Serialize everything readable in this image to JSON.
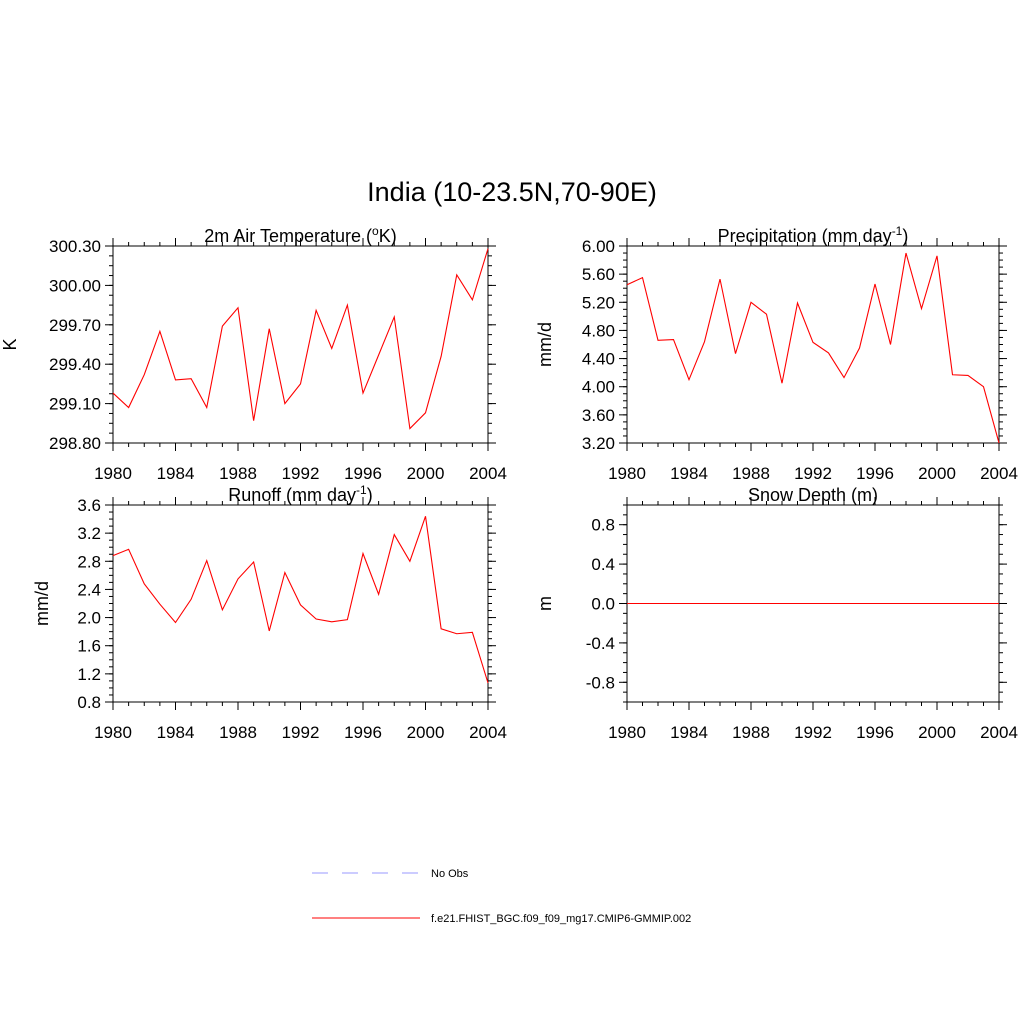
{
  "figure": {
    "title": "India (10-23.5N,70-90E)",
    "legend": [
      {
        "label": "No Obs",
        "color": "#9999ff",
        "style": "dashed"
      },
      {
        "label": "f.e21.FHIST_BGC.f09_f09_mg17.CMIP6-GMMIP.002",
        "color": "#ff0000",
        "style": "solid"
      }
    ]
  },
  "chart_data": [
    {
      "type": "line",
      "title_main": "2m Air Temperature (",
      "title_sup": "o",
      "title_end": "K)",
      "ylabel": "K",
      "xlim": [
        1980,
        2004
      ],
      "ylim": [
        298.8,
        300.3
      ],
      "yticks": [
        298.8,
        299.1,
        299.4,
        299.7,
        300.0,
        300.3
      ],
      "yticklabels": [
        "298.80",
        "299.10",
        "299.40",
        "299.70",
        "300.00",
        "300.30"
      ],
      "yminor": 0.075,
      "xticks": [
        1980,
        1984,
        1988,
        1992,
        1996,
        2000,
        2004
      ],
      "xticklabels": [
        "1980",
        "1984",
        "1988",
        "1992",
        "1996",
        "2000",
        "2004"
      ],
      "color": "#ff0000",
      "x": [
        1980,
        1981,
        1982,
        1983,
        1984,
        1985,
        1986,
        1987,
        1988,
        1989,
        1990,
        1991,
        1992,
        1993,
        1994,
        1995,
        1996,
        1997,
        1998,
        1999,
        2000,
        2001,
        2002,
        2003,
        2004
      ],
      "values": [
        299.18,
        299.07,
        299.32,
        299.65,
        299.28,
        299.29,
        299.07,
        299.69,
        299.83,
        298.97,
        299.67,
        299.1,
        299.25,
        299.81,
        299.52,
        299.85,
        299.18,
        299.47,
        299.76,
        298.91,
        299.03,
        299.46,
        300.08,
        299.89,
        300.28
      ]
    },
    {
      "type": "line",
      "title_main": "Precipitation (mm day",
      "title_sup": "-1",
      "title_end": ")",
      "ylabel": "mm/d",
      "xlim": [
        1980,
        2004
      ],
      "ylim": [
        3.2,
        6.0
      ],
      "yticks": [
        3.2,
        3.6,
        4.0,
        4.4,
        4.8,
        5.2,
        5.6,
        6.0
      ],
      "yticklabels": [
        "3.20",
        "3.60",
        "4.00",
        "4.40",
        "4.80",
        "5.20",
        "5.60",
        "6.00"
      ],
      "yminor": 0.1,
      "xticks": [
        1980,
        1984,
        1988,
        1992,
        1996,
        2000,
        2004
      ],
      "xticklabels": [
        "1980",
        "1984",
        "1988",
        "1992",
        "1996",
        "2000",
        "2004"
      ],
      "color": "#ff0000",
      "x": [
        1980,
        1981,
        1982,
        1983,
        1984,
        1985,
        1986,
        1987,
        1988,
        1989,
        1990,
        1991,
        1992,
        1993,
        1994,
        1995,
        1996,
        1997,
        1998,
        1999,
        2000,
        2001,
        2002,
        2003,
        2004
      ],
      "values": [
        5.45,
        5.55,
        4.66,
        4.67,
        4.1,
        4.64,
        5.53,
        4.47,
        5.2,
        5.03,
        4.05,
        5.19,
        4.63,
        4.48,
        4.13,
        4.55,
        5.46,
        4.6,
        5.9,
        5.11,
        5.86,
        4.17,
        4.16,
        4.0,
        3.2
      ]
    },
    {
      "type": "line",
      "title_main": "Runoff (mm day",
      "title_sup": "-1",
      "title_end": ")",
      "ylabel": "mm/d",
      "xlim": [
        1980,
        2004
      ],
      "ylim": [
        0.8,
        3.6
      ],
      "yticks": [
        0.8,
        1.2,
        1.6,
        2.0,
        2.4,
        2.8,
        3.2,
        3.6
      ],
      "yticklabels": [
        "0.8",
        "1.2",
        "1.6",
        "2.0",
        "2.4",
        "2.8",
        "3.2",
        "3.6"
      ],
      "yminor": 0.1,
      "xticks": [
        1980,
        1984,
        1988,
        1992,
        1996,
        2000,
        2004
      ],
      "xticklabels": [
        "1980",
        "1984",
        "1988",
        "1992",
        "1996",
        "2000",
        "2004"
      ],
      "color": "#ff0000",
      "x": [
        1980,
        1981,
        1982,
        1983,
        1984,
        1985,
        1986,
        1987,
        1988,
        1989,
        1990,
        1991,
        1992,
        1993,
        1994,
        1995,
        1996,
        1997,
        1998,
        1999,
        2000,
        2001,
        2002,
        2003,
        2004
      ],
      "values": [
        2.88,
        2.97,
        2.48,
        2.19,
        1.93,
        2.26,
        2.81,
        2.11,
        2.55,
        2.79,
        1.81,
        2.64,
        2.18,
        1.98,
        1.94,
        1.97,
        2.91,
        2.33,
        3.18,
        2.8,
        3.44,
        1.84,
        1.77,
        1.79,
        1.07
      ]
    },
    {
      "type": "line",
      "title_main": "Snow Depth (m)",
      "title_sup": "",
      "title_end": "",
      "ylabel": "m",
      "xlim": [
        1980,
        2004
      ],
      "ylim": [
        -1.0,
        1.0
      ],
      "yticks": [
        -0.8,
        -0.4,
        0.0,
        0.4,
        0.8
      ],
      "yticklabels": [
        "-0.8",
        "-0.4",
        "0.0",
        "0.4",
        "0.8"
      ],
      "yminor": 0.1,
      "xticks": [
        1980,
        1984,
        1988,
        1992,
        1996,
        2000,
        2004
      ],
      "xticklabels": [
        "1980",
        "1984",
        "1988",
        "1992",
        "1996",
        "2000",
        "2004"
      ],
      "color": "#ff0000",
      "x": [
        1980,
        2004
      ],
      "values": [
        0.0,
        0.0
      ]
    }
  ]
}
